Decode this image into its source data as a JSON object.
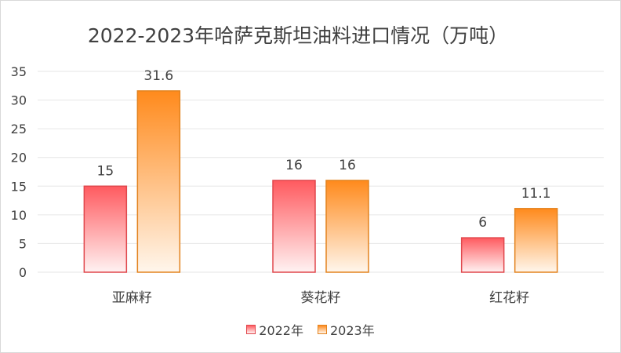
{
  "chart_data": {
    "type": "bar",
    "title": "2022-2023年哈萨克斯坦油料进口情况（万吨）",
    "categories": [
      "亚麻籽",
      "葵花籽",
      "红花籽"
    ],
    "series": [
      {
        "name": "2022年",
        "values": [
          15,
          16,
          6
        ],
        "color_top": "#ff5a5f",
        "color_bottom": "#fff2f2",
        "stroke": "#e0474c"
      },
      {
        "name": "2023年",
        "values": [
          31.6,
          16,
          11.1
        ],
        "color_top": "#ff8a1c",
        "color_bottom": "#fff6ec",
        "stroke": "#e3831f"
      }
    ],
    "ylim": [
      0,
      35
    ],
    "yticks": [
      0,
      5,
      10,
      15,
      20,
      25,
      30,
      35
    ],
    "grid": true,
    "legend_position": "bottom"
  }
}
